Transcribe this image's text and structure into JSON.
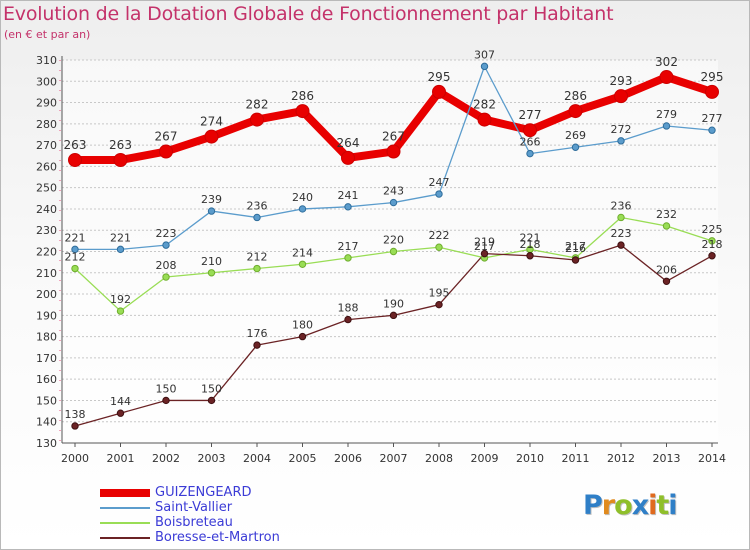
{
  "header": {
    "title": "Evolution de la Dotation Globale de Fonctionnement par Habitant",
    "subtitle": "(en € et par an)"
  },
  "chart_data": {
    "type": "line",
    "title": "Evolution de la Dotation Globale de Fonctionnement par Habitant",
    "subtitle": "(en € et par an)",
    "xlabel": "",
    "ylabel": "",
    "ylim": [
      130,
      310
    ],
    "yticks": [
      130,
      140,
      150,
      160,
      170,
      180,
      190,
      200,
      210,
      220,
      230,
      240,
      250,
      260,
      270,
      280,
      290,
      300,
      310
    ],
    "categories": [
      "2000",
      "2001",
      "2002",
      "2003",
      "2004",
      "2005",
      "2006",
      "2007",
      "2008",
      "2009",
      "2010",
      "2011",
      "2012",
      "2013",
      "2014"
    ],
    "grid": "horizontal",
    "legend": "bottom-left",
    "series": [
      {
        "name": "GUIZENGEARD",
        "color": "#e80000",
        "values": [
          263,
          263,
          267,
          274,
          282,
          286,
          264,
          267,
          295,
          282,
          277,
          286,
          293,
          302,
          295
        ]
      },
      {
        "name": "Saint-Vallier",
        "color": "#5b9ccc",
        "values": [
          221,
          221,
          223,
          239,
          236,
          240,
          241,
          243,
          247,
          307,
          266,
          269,
          272,
          279,
          277
        ]
      },
      {
        "name": "Boisbreteau",
        "color": "#99dd55",
        "values": [
          212,
          192,
          208,
          210,
          212,
          214,
          217,
          220,
          222,
          217,
          221,
          217,
          236,
          232,
          225
        ]
      },
      {
        "name": "Boresse-et-Martron",
        "color": "#6b2325",
        "values": [
          138,
          144,
          150,
          150,
          176,
          180,
          188,
          190,
          195,
          219,
          218,
          216,
          223,
          206,
          218
        ]
      }
    ]
  },
  "logo": {
    "letters": [
      "P",
      "r",
      "o",
      "x",
      "i",
      "t",
      "i"
    ],
    "colors": [
      "#2f7fc7",
      "#e08a1e",
      "#8fbf2a",
      "#2f7fc7",
      "#e06a1e",
      "#8fbf2a",
      "#2f7fc7"
    ]
  }
}
